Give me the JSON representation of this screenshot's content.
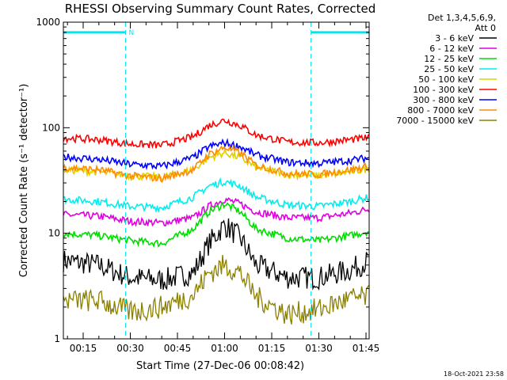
{
  "chart_data": {
    "type": "line",
    "title": "RHESSI Observing Summary Count Rates, Corrected",
    "xlabel": "Start Time (27-Dec-06 00:08:42)",
    "ylabel": "Corrected Count Rate (s⁻¹ detector⁻¹)",
    "yscale": "log",
    "ylim": [
      1,
      1000
    ],
    "xlim_minutes": [
      8.7,
      106
    ],
    "x_ticks": [
      {
        "label": "00:15",
        "minute": 15
      },
      {
        "label": "00:30",
        "minute": 30
      },
      {
        "label": "00:45",
        "minute": 45
      },
      {
        "label": "01:00",
        "minute": 60
      },
      {
        "label": "01:15",
        "minute": 75
      },
      {
        "label": "01:30",
        "minute": 90
      },
      {
        "label": "01:45",
        "minute": 105
      }
    ],
    "y_ticks": [
      {
        "label": "1",
        "value": 1
      },
      {
        "label": "10",
        "value": 10
      },
      {
        "label": "100",
        "value": 100
      },
      {
        "label": "1000",
        "value": 1000
      }
    ],
    "legend_header": [
      "Det 1,3,4,5,6,9,",
      "Att 0"
    ],
    "series": [
      {
        "name": "3 - 6 keV",
        "color": "#000000",
        "minutes": [
          9,
          20,
          30,
          40,
          50,
          55,
          60,
          65,
          70,
          80,
          90,
          100,
          106
        ],
        "values": [
          5.5,
          5.0,
          3.8,
          3.6,
          4.2,
          8.0,
          12.0,
          9.0,
          5.0,
          3.8,
          3.8,
          4.5,
          5.5
        ]
      },
      {
        "name": "6 - 12 keV",
        "color": "#e000e0",
        "minutes": [
          9,
          20,
          30,
          40,
          50,
          55,
          60,
          65,
          70,
          80,
          90,
          100,
          106
        ],
        "values": [
          15,
          14.5,
          13,
          12.5,
          14,
          18,
          21,
          19,
          16,
          14,
          14,
          15.5,
          17
        ]
      },
      {
        "name": "12 - 25 keV",
        "color": "#00dd00",
        "minutes": [
          9,
          20,
          30,
          40,
          50,
          55,
          60,
          65,
          70,
          80,
          90,
          100,
          106
        ],
        "values": [
          10,
          9.5,
          8.5,
          8.0,
          11,
          16,
          19,
          16,
          11,
          9,
          8.5,
          9.5,
          10.5
        ]
      },
      {
        "name": "25 - 50 keV",
        "color": "#00eeee",
        "minutes": [
          9,
          20,
          30,
          40,
          50,
          55,
          60,
          65,
          70,
          80,
          90,
          100,
          106
        ],
        "values": [
          21,
          20,
          18,
          17.5,
          22,
          28,
          31,
          28,
          22,
          18.5,
          18,
          20,
          22
        ]
      },
      {
        "name": "50 - 100 keV",
        "color": "#e0d000",
        "minutes": [
          9,
          20,
          30,
          40,
          50,
          55,
          60,
          65,
          70,
          80,
          90,
          100,
          106
        ],
        "values": [
          40,
          38,
          35,
          34,
          40,
          52,
          58,
          52,
          42,
          36,
          35,
          38,
          41
        ]
      },
      {
        "name": "100 - 300 keV",
        "color": "#ff0000",
        "minutes": [
          9,
          20,
          30,
          40,
          50,
          55,
          60,
          65,
          70,
          80,
          90,
          100,
          106
        ],
        "values": [
          80,
          77,
          70,
          68,
          82,
          105,
          118,
          105,
          85,
          73,
          72,
          77,
          80
        ]
      },
      {
        "name": "300 - 800 keV",
        "color": "#0000ff",
        "minutes": [
          9,
          20,
          30,
          40,
          50,
          55,
          60,
          65,
          70,
          80,
          90,
          100,
          106
        ],
        "values": [
          53,
          50,
          45,
          43,
          52,
          66,
          72,
          66,
          55,
          47,
          46,
          49,
          52
        ]
      },
      {
        "name": "800 - 7000 keV",
        "color": "#ff8c00",
        "minutes": [
          9,
          20,
          30,
          40,
          50,
          55,
          60,
          65,
          70,
          80,
          90,
          100,
          106
        ],
        "values": [
          42,
          40,
          35,
          33,
          40,
          56,
          65,
          58,
          44,
          37,
          36,
          40,
          43
        ]
      },
      {
        "name": "7000 - 15000 keV",
        "color": "#8b8000",
        "minutes": [
          9,
          20,
          30,
          40,
          50,
          55,
          60,
          65,
          70,
          80,
          90,
          100,
          106
        ],
        "values": [
          2.3,
          2.3,
          1.8,
          2.0,
          2.6,
          4.2,
          5.0,
          4.2,
          2.5,
          1.7,
          1.9,
          2.4,
          2.5
        ]
      }
    ],
    "flag_markers": [
      {
        "label": "N",
        "start_minute": 8.7,
        "end_minute": 28.5,
        "value": 800,
        "color": "#00e5ee"
      },
      {
        "label": "",
        "start_minute": 87.5,
        "end_minute": 106,
        "value": 800,
        "color": "#00e5ee"
      }
    ],
    "boundary_lines_minutes": [
      8.7,
      28.5,
      87.5,
      106
    ],
    "boundary_color": "#00e5ee"
  },
  "timestamp": "18-Oct-2021 23:58"
}
